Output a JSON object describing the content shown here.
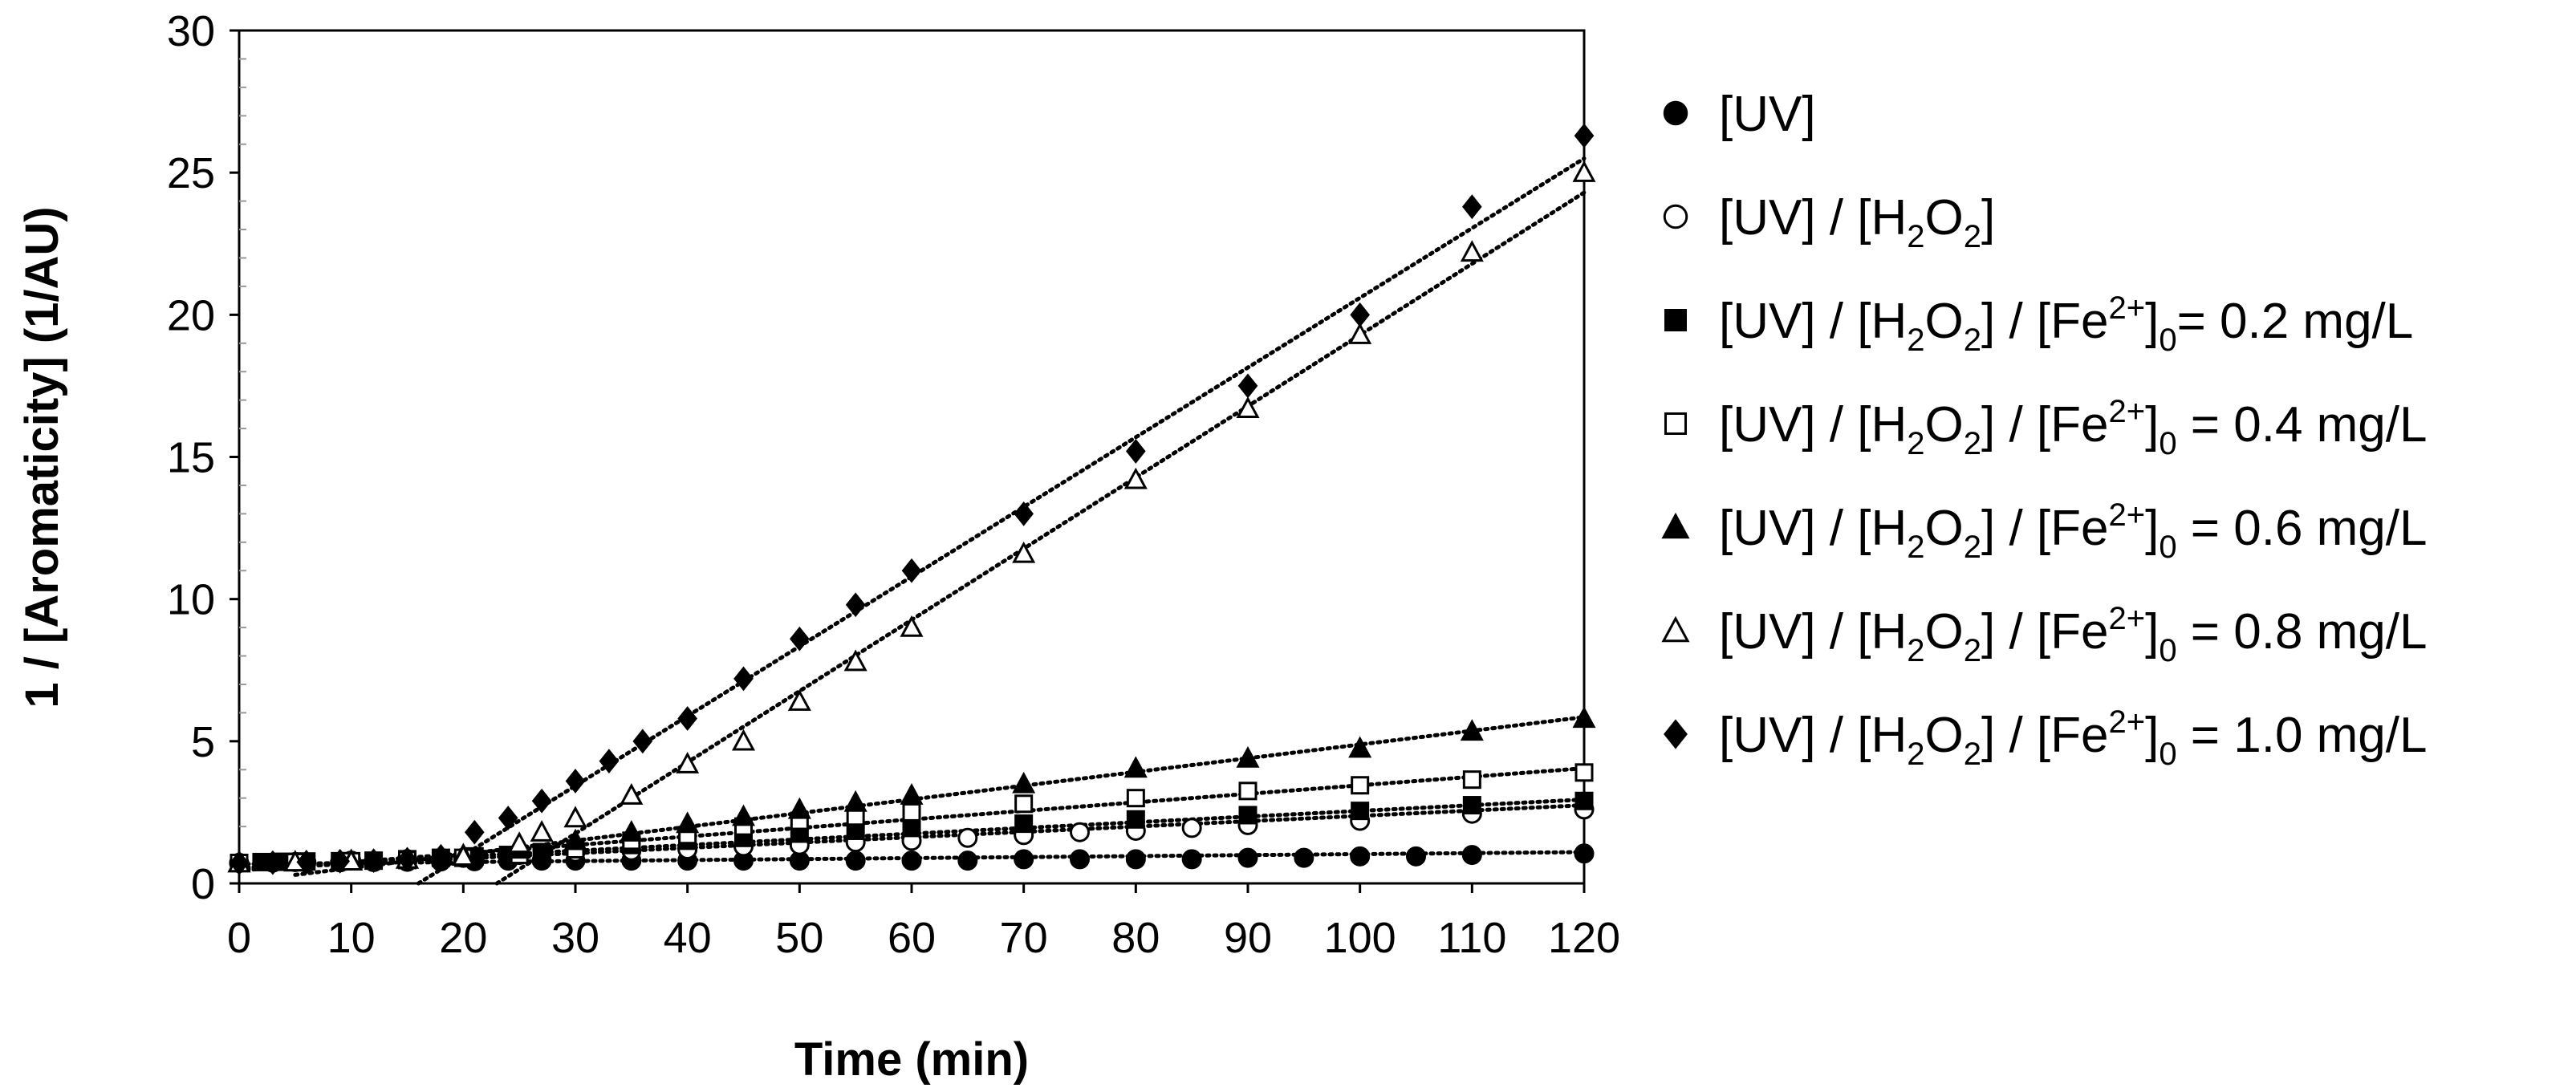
{
  "chart_data": {
    "type": "scatter",
    "title": "",
    "xlabel": "Time (min)",
    "ylabel": "1 / [Aromaticity] (1/AU)",
    "xlim": [
      0,
      120
    ],
    "ylim": [
      0,
      30
    ],
    "x_ticks": [
      0,
      10,
      20,
      30,
      40,
      50,
      60,
      70,
      80,
      90,
      100,
      110,
      120
    ],
    "y_ticks": [
      0,
      5,
      10,
      15,
      20,
      25,
      30
    ],
    "x_tick_labels": [
      "0",
      "10",
      "20",
      "30",
      "40",
      "50",
      "60",
      "70",
      "80",
      "90",
      "100",
      "110",
      "120"
    ],
    "y_tick_labels": [
      "0",
      "5",
      "10",
      "15",
      "20",
      "25",
      "30"
    ],
    "legend_position": "right",
    "series": [
      {
        "name": "[UV]",
        "legend": {
          "pre": "[UV]",
          "parts": []
        },
        "marker": "circle-filled",
        "points": [
          [
            0,
            0.72
          ],
          [
            3,
            0.73
          ],
          [
            6,
            0.74
          ],
          [
            9,
            0.74
          ],
          [
            12,
            0.75
          ],
          [
            15,
            0.76
          ],
          [
            18,
            0.77
          ],
          [
            21,
            0.78
          ],
          [
            24,
            0.8
          ],
          [
            27,
            0.8
          ],
          [
            30,
            0.8
          ],
          [
            35,
            0.8
          ],
          [
            40,
            0.8
          ],
          [
            45,
            0.8
          ],
          [
            50,
            0.8
          ],
          [
            55,
            0.8
          ],
          [
            60,
            0.8
          ],
          [
            65,
            0.8
          ],
          [
            70,
            0.85
          ],
          [
            75,
            0.85
          ],
          [
            80,
            0.85
          ],
          [
            85,
            0.85
          ],
          [
            90,
            0.9
          ],
          [
            95,
            0.9
          ],
          [
            100,
            0.95
          ],
          [
            105,
            0.95
          ],
          [
            110,
            1.0
          ],
          [
            120,
            1.05
          ]
        ],
        "trend": [
          [
            0,
            0.68
          ],
          [
            120,
            1.1
          ]
        ]
      },
      {
        "name": "[UV] / [H2O2]",
        "legend": {
          "pre": "[UV] / [H",
          "parts": [
            {
              "sub": "2"
            },
            {
              "t": "O"
            },
            {
              "sub": "2"
            },
            {
              "t": "]"
            }
          ]
        },
        "marker": "circle-open",
        "points": [
          [
            0,
            0.72
          ],
          [
            5,
            0.75
          ],
          [
            10,
            0.8
          ],
          [
            15,
            0.85
          ],
          [
            20,
            0.9
          ],
          [
            25,
            1.0
          ],
          [
            30,
            1.1
          ],
          [
            35,
            1.15
          ],
          [
            40,
            1.2
          ],
          [
            45,
            1.3
          ],
          [
            50,
            1.35
          ],
          [
            55,
            1.45
          ],
          [
            60,
            1.5
          ],
          [
            65,
            1.6
          ],
          [
            70,
            1.7
          ],
          [
            75,
            1.8
          ],
          [
            80,
            1.85
          ],
          [
            85,
            1.95
          ],
          [
            90,
            2.05
          ],
          [
            100,
            2.2
          ],
          [
            110,
            2.45
          ],
          [
            120,
            2.6
          ]
        ],
        "trend": [
          [
            0,
            0.5
          ],
          [
            120,
            2.75
          ]
        ]
      },
      {
        "name": "[UV] / [H2O2] / [Fe2+]0= 0.2 mg/L",
        "legend": {
          "pre": "[UV] / [H",
          "parts": [
            {
              "sub": "2"
            },
            {
              "t": "O"
            },
            {
              "sub": "2"
            },
            {
              "t": "] / [Fe"
            },
            {
              "sup": "2+"
            },
            {
              "t": "]"
            },
            {
              "sub": "0"
            },
            {
              "t": "= 0.2 mg/L"
            }
          ]
        },
        "marker": "square-filled",
        "points": [
          [
            0,
            0.72
          ],
          [
            2,
            0.75
          ],
          [
            4,
            0.76
          ],
          [
            6,
            0.77
          ],
          [
            9,
            0.78
          ],
          [
            12,
            0.8
          ],
          [
            15,
            0.85
          ],
          [
            18,
            0.9
          ],
          [
            21,
            0.95
          ],
          [
            24,
            1.0
          ],
          [
            27,
            1.1
          ],
          [
            30,
            1.2
          ],
          [
            35,
            1.35
          ],
          [
            40,
            1.5
          ],
          [
            45,
            1.6
          ],
          [
            50,
            1.75
          ],
          [
            55,
            1.85
          ],
          [
            60,
            1.95
          ],
          [
            70,
            2.1
          ],
          [
            80,
            2.25
          ],
          [
            90,
            2.4
          ],
          [
            100,
            2.55
          ],
          [
            110,
            2.75
          ],
          [
            120,
            2.9
          ]
        ],
        "trend": [
          [
            0,
            0.55
          ],
          [
            120,
            2.95
          ]
        ]
      },
      {
        "name": "[UV] / [H2O2] / [Fe2+]0 = 0.4 mg/L",
        "legend": {
          "pre": "[UV] / [H",
          "parts": [
            {
              "sub": "2"
            },
            {
              "t": "O"
            },
            {
              "sub": "2"
            },
            {
              "t": "] / [Fe"
            },
            {
              "sup": "2+"
            },
            {
              "t": "]"
            },
            {
              "sub": "0"
            },
            {
              "t": " = 0.4 mg/L"
            }
          ]
        },
        "marker": "square-open",
        "points": [
          [
            0,
            0.72
          ],
          [
            5,
            0.75
          ],
          [
            10,
            0.78
          ],
          [
            15,
            0.82
          ],
          [
            20,
            0.9
          ],
          [
            25,
            1.0
          ],
          [
            30,
            1.2
          ],
          [
            35,
            1.5
          ],
          [
            40,
            1.7
          ],
          [
            45,
            2.0
          ],
          [
            50,
            2.2
          ],
          [
            55,
            2.35
          ],
          [
            60,
            2.5
          ],
          [
            70,
            2.8
          ],
          [
            80,
            3.0
          ],
          [
            90,
            3.25
          ],
          [
            100,
            3.45
          ],
          [
            110,
            3.65
          ],
          [
            120,
            3.9
          ]
        ],
        "trend": [
          [
            0,
            0.45
          ],
          [
            120,
            4.05
          ]
        ]
      },
      {
        "name": "[UV] / [H2O2] / [Fe2+]0 = 0.6 mg/L",
        "legend": {
          "pre": "[UV] / [H",
          "parts": [
            {
              "sub": "2"
            },
            {
              "t": "O"
            },
            {
              "sub": "2"
            },
            {
              "t": "] / [Fe"
            },
            {
              "sup": "2+"
            },
            {
              "t": "]"
            },
            {
              "sub": "0"
            },
            {
              "t": " = 0.6 mg/L"
            }
          ]
        },
        "marker": "triangle-filled",
        "points": [
          [
            0,
            0.72
          ],
          [
            5,
            0.75
          ],
          [
            10,
            0.8
          ],
          [
            15,
            0.85
          ],
          [
            20,
            1.0
          ],
          [
            25,
            1.2
          ],
          [
            30,
            1.5
          ],
          [
            35,
            1.8
          ],
          [
            40,
            2.1
          ],
          [
            45,
            2.35
          ],
          [
            50,
            2.6
          ],
          [
            55,
            2.85
          ],
          [
            60,
            3.1
          ],
          [
            70,
            3.5
          ],
          [
            80,
            4.05
          ],
          [
            90,
            4.4
          ],
          [
            100,
            4.75
          ],
          [
            110,
            5.35
          ],
          [
            120,
            5.8
          ]
        ],
        "trend": [
          [
            5,
            0.3
          ],
          [
            120,
            5.85
          ]
        ]
      },
      {
        "name": "[UV] / [H2O2] / [Fe2+]0 = 0.8 mg/L",
        "legend": {
          "pre": "[UV] / [H",
          "parts": [
            {
              "sub": "2"
            },
            {
              "t": "O"
            },
            {
              "sub": "2"
            },
            {
              "t": "] / [Fe"
            },
            {
              "sup": "2+"
            },
            {
              "t": "]"
            },
            {
              "sub": "0"
            },
            {
              "t": " = 0.8 mg/L"
            }
          ]
        },
        "marker": "triangle-open",
        "points": [
          [
            0,
            0.72
          ],
          [
            5,
            0.75
          ],
          [
            10,
            0.78
          ],
          [
            15,
            0.85
          ],
          [
            20,
            0.95
          ],
          [
            25,
            1.4
          ],
          [
            27,
            1.8
          ],
          [
            30,
            2.3
          ],
          [
            35,
            3.1
          ],
          [
            40,
            4.2
          ],
          [
            45,
            5.0
          ],
          [
            50,
            6.4
          ],
          [
            55,
            7.8
          ],
          [
            60,
            9.0
          ],
          [
            70,
            11.6
          ],
          [
            80,
            14.2
          ],
          [
            90,
            16.7
          ],
          [
            100,
            19.3
          ],
          [
            110,
            22.2
          ],
          [
            120,
            25.0
          ]
        ],
        "trend": [
          [
            23,
            0.0
          ],
          [
            120,
            24.3
          ]
        ]
      },
      {
        "name": "[UV] / [H2O2] / [Fe2+]0 = 1.0 mg/L",
        "legend": {
          "pre": "[UV] / [H",
          "parts": [
            {
              "sub": "2"
            },
            {
              "t": "O"
            },
            {
              "sub": "2"
            },
            {
              "t": "] / [Fe"
            },
            {
              "sup": "2+"
            },
            {
              "t": "]"
            },
            {
              "sub": "0"
            },
            {
              "t": " = 1.0 mg/L"
            }
          ]
        },
        "marker": "diamond-filled",
        "points": [
          [
            0,
            0.72
          ],
          [
            3,
            0.73
          ],
          [
            6,
            0.75
          ],
          [
            9,
            0.78
          ],
          [
            12,
            0.8
          ],
          [
            15,
            0.85
          ],
          [
            18,
            0.95
          ],
          [
            21,
            1.8
          ],
          [
            24,
            2.3
          ],
          [
            27,
            2.9
          ],
          [
            30,
            3.6
          ],
          [
            33,
            4.3
          ],
          [
            36,
            5.0
          ],
          [
            40,
            5.8
          ],
          [
            45,
            7.2
          ],
          [
            50,
            8.6
          ],
          [
            55,
            9.8
          ],
          [
            60,
            11.0
          ],
          [
            70,
            13.0
          ],
          [
            80,
            15.2
          ],
          [
            90,
            17.5
          ],
          [
            100,
            20.0
          ],
          [
            110,
            23.8
          ],
          [
            120,
            26.3
          ]
        ],
        "trend": [
          [
            16,
            0.0
          ],
          [
            120,
            25.5
          ]
        ]
      }
    ]
  }
}
